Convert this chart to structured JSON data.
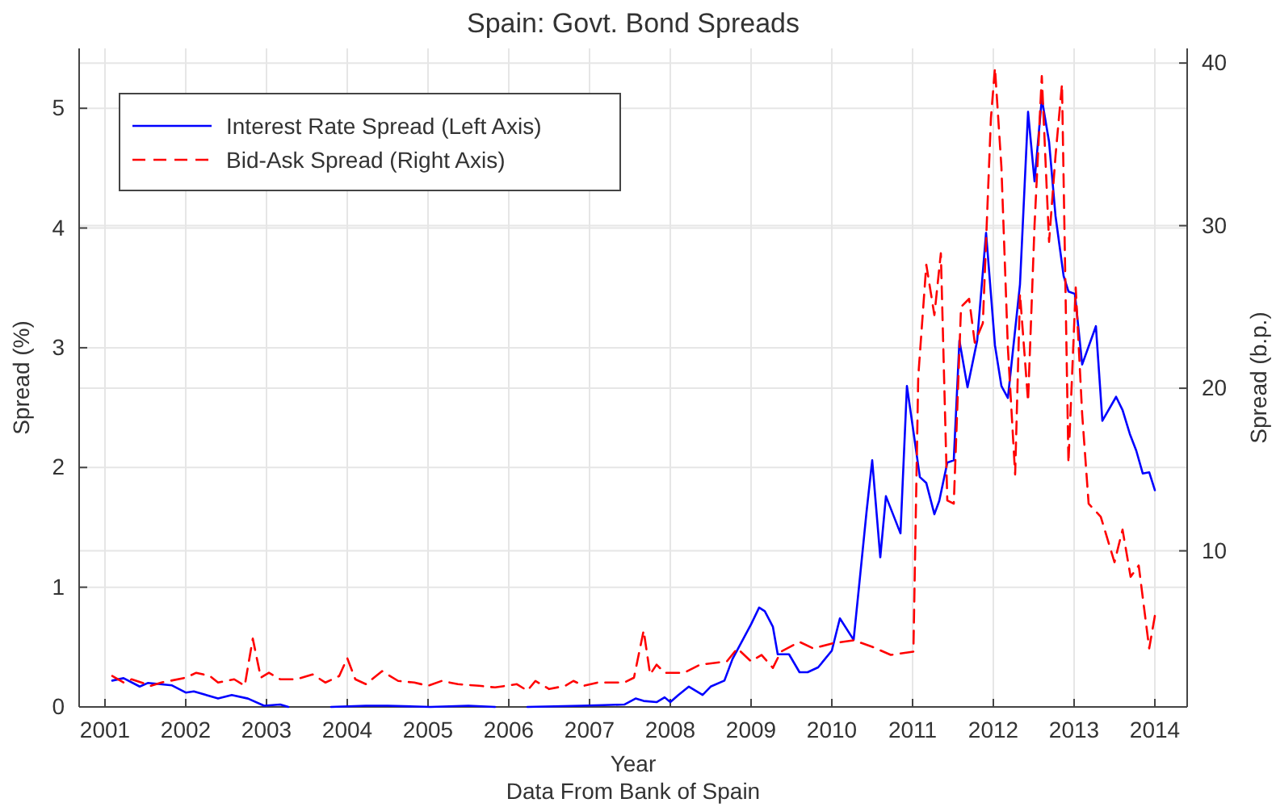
{
  "chart_data": {
    "type": "line",
    "title": "Spain: Govt. Bond Spreads",
    "xlabel": "Year",
    "ylabel": "Spread (%)",
    "y2label": "Spread (b.p.)",
    "annotations": [
      "Data From Bank of Spain"
    ],
    "xlim": [
      2000.68,
      2014.4
    ],
    "xticks": [
      2001,
      2002,
      2003,
      2004,
      2005,
      2006,
      2007,
      2008,
      2009,
      2010,
      2011,
      2012,
      2013,
      2014
    ],
    "ylim": [
      0,
      5.5
    ],
    "yticks": [
      0,
      1,
      2,
      3,
      4,
      5
    ],
    "y2lim": [
      0.4,
      40.9
    ],
    "y2ticks": [
      10,
      20,
      30,
      40
    ],
    "grid": true,
    "legend": "top left",
    "marker": "none",
    "series": [
      {
        "name": "Interest Rate Spread (Left Axis)",
        "color": "#0000ff",
        "line_style": "solid",
        "x": [
          2001.09,
          2001.23,
          2001.43,
          2001.53,
          2001.83,
          2002.0,
          2002.1,
          2002.4,
          2002.57,
          2002.77,
          2002.97,
          2003.17,
          2003.27,
          2003.5,
          2003.8,
          2004.23,
          2004.5,
          2005.03,
          2005.5,
          2005.83,
          2006.0,
          2006.23,
          2006.9,
          2007.43,
          2007.57,
          2007.67,
          2007.83,
          2007.93,
          2008.0,
          2008.1,
          2008.23,
          2008.4,
          2008.5,
          2008.67,
          2008.77,
          2009.0,
          2009.1,
          2009.17,
          2009.27,
          2009.33,
          2009.47,
          2009.6,
          2009.7,
          2009.83,
          2010.0,
          2010.1,
          2010.27,
          2010.33,
          2010.43,
          2010.5,
          2010.6,
          2010.67,
          2010.85,
          2010.93,
          2011.0,
          2011.09,
          2011.17,
          2011.27,
          2011.33,
          2011.43,
          2011.51,
          2011.58,
          2011.68,
          2011.8,
          2011.91,
          2012.02,
          2012.1,
          2012.18,
          2012.33,
          2012.43,
          2012.51,
          2012.6,
          2012.69,
          2012.77,
          2012.87,
          2012.93,
          2013.01,
          2013.1,
          2013.27,
          2013.35,
          2013.52,
          2013.6,
          2013.69,
          2013.77,
          2013.85,
          2013.93,
          2014.0
        ],
        "values": [
          0.22,
          0.24,
          0.17,
          0.2,
          0.18,
          0.12,
          0.13,
          0.07,
          0.1,
          0.07,
          0.01,
          0.02,
          0,
          null,
          0,
          0.01,
          0.01,
          0,
          0.01,
          0,
          null,
          0,
          0.01,
          0.02,
          0.07,
          0.05,
          0.04,
          0.08,
          0.04,
          0.1,
          0.17,
          0.1,
          0.17,
          0.22,
          0.4,
          0.69,
          0.83,
          0.8,
          0.67,
          0.44,
          0.44,
          0.29,
          0.29,
          0.33,
          0.47,
          0.74,
          0.56,
          0.96,
          1.63,
          2.06,
          1.25,
          1.76,
          1.45,
          2.68,
          2.35,
          1.92,
          1.87,
          1.61,
          1.72,
          2.04,
          2.06,
          3.06,
          2.67,
          3.06,
          3.96,
          3.02,
          2.68,
          2.58,
          3.53,
          4.97,
          4.39,
          5.08,
          4.72,
          4.1,
          3.6,
          3.47,
          3.45,
          2.86,
          3.18,
          2.39,
          2.59,
          2.48,
          2.28,
          2.14,
          1.95,
          1.96,
          1.81
        ]
      },
      {
        "name": "Bid-Ask Spread (Right Axis)",
        "color": "#ff0000",
        "line_style": "dashed",
        "axis": "y2",
        "x": [
          2001.09,
          2001.23,
          2001.33,
          2001.57,
          2001.7,
          2002.0,
          2002.13,
          2002.3,
          2002.4,
          2002.6,
          2002.73,
          2002.83,
          2002.93,
          2003.03,
          2003.17,
          2003.37,
          2003.57,
          2003.73,
          2003.9,
          2004.0,
          2004.1,
          2004.23,
          2004.43,
          2004.63,
          2004.83,
          2005.0,
          2005.17,
          2005.37,
          2005.63,
          2005.83,
          2006.1,
          2006.23,
          2006.33,
          2006.5,
          2006.7,
          2006.8,
          2006.93,
          2007.1,
          2007.43,
          2007.55,
          2007.67,
          2007.75,
          2007.83,
          2007.93,
          2008.17,
          2008.37,
          2008.7,
          2008.83,
          2009.0,
          2009.13,
          2009.27,
          2009.37,
          2009.6,
          2009.77,
          2010.0,
          2010.27,
          2010.5,
          2010.73,
          2011.01,
          2011.07,
          2011.17,
          2011.27,
          2011.35,
          2011.43,
          2011.51,
          2011.6,
          2011.7,
          2011.77,
          2011.87,
          2011.97,
          2012.02,
          2012.1,
          2012.18,
          2012.27,
          2012.33,
          2012.43,
          2012.51,
          2012.6,
          2012.69,
          2012.77,
          2012.85,
          2012.93,
          2013.02,
          2013.1,
          2013.18,
          2013.33,
          2013.5,
          2013.6,
          2013.7,
          2013.8,
          2013.93,
          2014.0
        ],
        "values": [
          2.3,
          1.9,
          2.1,
          1.7,
          1.9,
          2.2,
          2.5,
          2.3,
          1.9,
          2.1,
          1.7,
          4.6,
          2.2,
          2.5,
          2.1,
          2.1,
          2.4,
          1.9,
          2.3,
          3.4,
          2.1,
          1.8,
          2.6,
          2.0,
          1.9,
          1.7,
          2.0,
          1.8,
          1.7,
          1.6,
          1.8,
          1.4,
          2.0,
          1.5,
          1.7,
          2.0,
          1.7,
          1.9,
          1.9,
          2.2,
          5.1,
          2.4,
          3.0,
          2.5,
          2.5,
          3.0,
          3.2,
          4.0,
          3.2,
          3.6,
          2.8,
          3.8,
          4.4,
          4.0,
          4.3,
          4.5,
          4.1,
          3.6,
          3.8,
          20.7,
          27.6,
          24.5,
          28.3,
          13.1,
          12.9,
          25.0,
          25.5,
          22.8,
          24.0,
          36.6,
          39.7,
          33.6,
          22.5,
          14.7,
          25.8,
          19.2,
          30.0,
          39.2,
          29.0,
          34.3,
          38.7,
          15.4,
          26.2,
          18.4,
          12.9,
          12.1,
          9.3,
          11.3,
          8.4,
          9.1,
          4.0,
          6.0
        ]
      }
    ]
  }
}
